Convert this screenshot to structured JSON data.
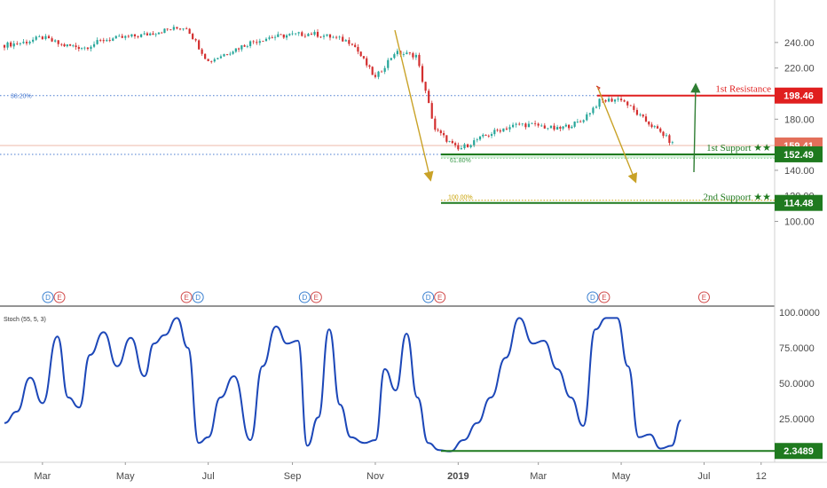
{
  "chart_data": [
    {
      "type": "candlestick",
      "panel": "price",
      "y_ticks": [
        "240.00",
        "220.00",
        "198.46",
        "180.00",
        "159.41",
        "152.49",
        "140.00",
        "120.00",
        "114.48",
        "100.00"
      ],
      "ylim": [
        90,
        250
      ],
      "grid": false,
      "series": [
        {
          "x": [
            "2018-02-01",
            "2018-02-15",
            "2018-03-01",
            "2018-03-15",
            "2018-04-01",
            "2018-04-15",
            "2018-05-01",
            "2018-05-15",
            "2018-06-01",
            "2018-06-15",
            "2018-07-01",
            "2018-07-15",
            "2018-08-01",
            "2018-08-15",
            "2018-09-01",
            "2018-09-15",
            "2018-10-01",
            "2018-10-15",
            "2018-11-01",
            "2018-11-15",
            "2018-12-01",
            "2018-12-15",
            "2019-01-01",
            "2019-01-15",
            "2019-02-01",
            "2019-02-15",
            "2019-03-01",
            "2019-03-15",
            "2019-04-01",
            "2019-04-15",
            "2019-05-01",
            "2019-05-15",
            "2019-06-01",
            "2019-06-10"
          ],
          "close": [
            238,
            240,
            244,
            238,
            236,
            242,
            244,
            246,
            250,
            252,
            225,
            232,
            240,
            244,
            246,
            247,
            244,
            240,
            212,
            232,
            230,
            172,
            156,
            164,
            172,
            176,
            175,
            172,
            178,
            194,
            196,
            182,
            168,
            158
          ]
        }
      ],
      "levels": [
        {
          "label": "1st Resistance",
          "value": 198.46,
          "color": "#e01f1f"
        },
        {
          "label": "1st Support ★★",
          "value": 152.49,
          "color": "#1f7a1f"
        },
        {
          "label": "2nd Support ★★",
          "value": 114.48,
          "color": "#1f7a1f"
        }
      ],
      "last_price": 159.41,
      "fib": [
        {
          "label": "38.20%",
          "value": 198.46
        },
        {
          "label": "61.80%",
          "value": 149.5
        },
        {
          "label": "100.00%",
          "value": 114.48
        }
      ],
      "events": [
        {
          "x": "2018-03-05",
          "labels": [
            "D",
            "E"
          ]
        },
        {
          "x": "2018-06-15",
          "labels": [
            "E",
            "D"
          ]
        },
        {
          "x": "2018-09-10",
          "labels": [
            "D",
            "E"
          ]
        },
        {
          "x": "2018-12-10",
          "labels": [
            "D",
            "E"
          ]
        },
        {
          "x": "2019-04-10",
          "labels": [
            "D",
            "E"
          ]
        },
        {
          "x": "2019-07-01",
          "labels": [
            "E"
          ]
        }
      ]
    },
    {
      "type": "line",
      "panel": "oscillator",
      "title": "Stoch (55, 5, 3)",
      "y_ticks": [
        "100.0000",
        "75.0000",
        "50.0000",
        "25.0000",
        "2.3489"
      ],
      "ylim": [
        0,
        100
      ],
      "grid": false,
      "x_ticks": [
        "Mar",
        "May",
        "Jul",
        "Sep",
        "Nov",
        "2019",
        "Mar",
        "May",
        "Jul",
        "12"
      ],
      "series": [
        {
          "color": "#1c47b8",
          "x": [
            "2018-02-01",
            "2018-02-10",
            "2018-02-20",
            "2018-03-01",
            "2018-03-12",
            "2018-03-20",
            "2018-03-28",
            "2018-04-05",
            "2018-04-15",
            "2018-04-25",
            "2018-05-05",
            "2018-05-15",
            "2018-05-22",
            "2018-05-30",
            "2018-06-08",
            "2018-06-16",
            "2018-06-24",
            "2018-07-01",
            "2018-07-10",
            "2018-07-20",
            "2018-08-01",
            "2018-08-10",
            "2018-08-20",
            "2018-08-28",
            "2018-09-05",
            "2018-09-12",
            "2018-09-20",
            "2018-09-28",
            "2018-10-06",
            "2018-10-14",
            "2018-10-24",
            "2018-11-01",
            "2018-11-08",
            "2018-11-16",
            "2018-11-24",
            "2018-12-02",
            "2018-12-10",
            "2018-12-18",
            "2018-12-26",
            "2019-01-05",
            "2019-01-15",
            "2019-01-25",
            "2019-02-05",
            "2019-02-15",
            "2019-02-25",
            "2019-03-05",
            "2019-03-15",
            "2019-03-25",
            "2019-04-03",
            "2019-04-12",
            "2019-04-20",
            "2019-04-28",
            "2019-05-06",
            "2019-05-14",
            "2019-05-22",
            "2019-05-30",
            "2019-06-07",
            "2019-06-14"
          ],
          "values": [
            22,
            30,
            54,
            36,
            83,
            40,
            33,
            70,
            86,
            62,
            82,
            55,
            78,
            84,
            96,
            75,
            8,
            12,
            40,
            55,
            10,
            62,
            90,
            78,
            80,
            6,
            26,
            88,
            35,
            12,
            8,
            10,
            60,
            45,
            85,
            40,
            8,
            3,
            2,
            10,
            22,
            40,
            68,
            96,
            78,
            80,
            60,
            40,
            20,
            88,
            96,
            96,
            62,
            12,
            14,
            4,
            6,
            24
          ]
        }
      ],
      "levels": [
        {
          "label": "2.3489",
          "value": 2.3489,
          "color": "#1f7a1f"
        }
      ]
    }
  ]
}
